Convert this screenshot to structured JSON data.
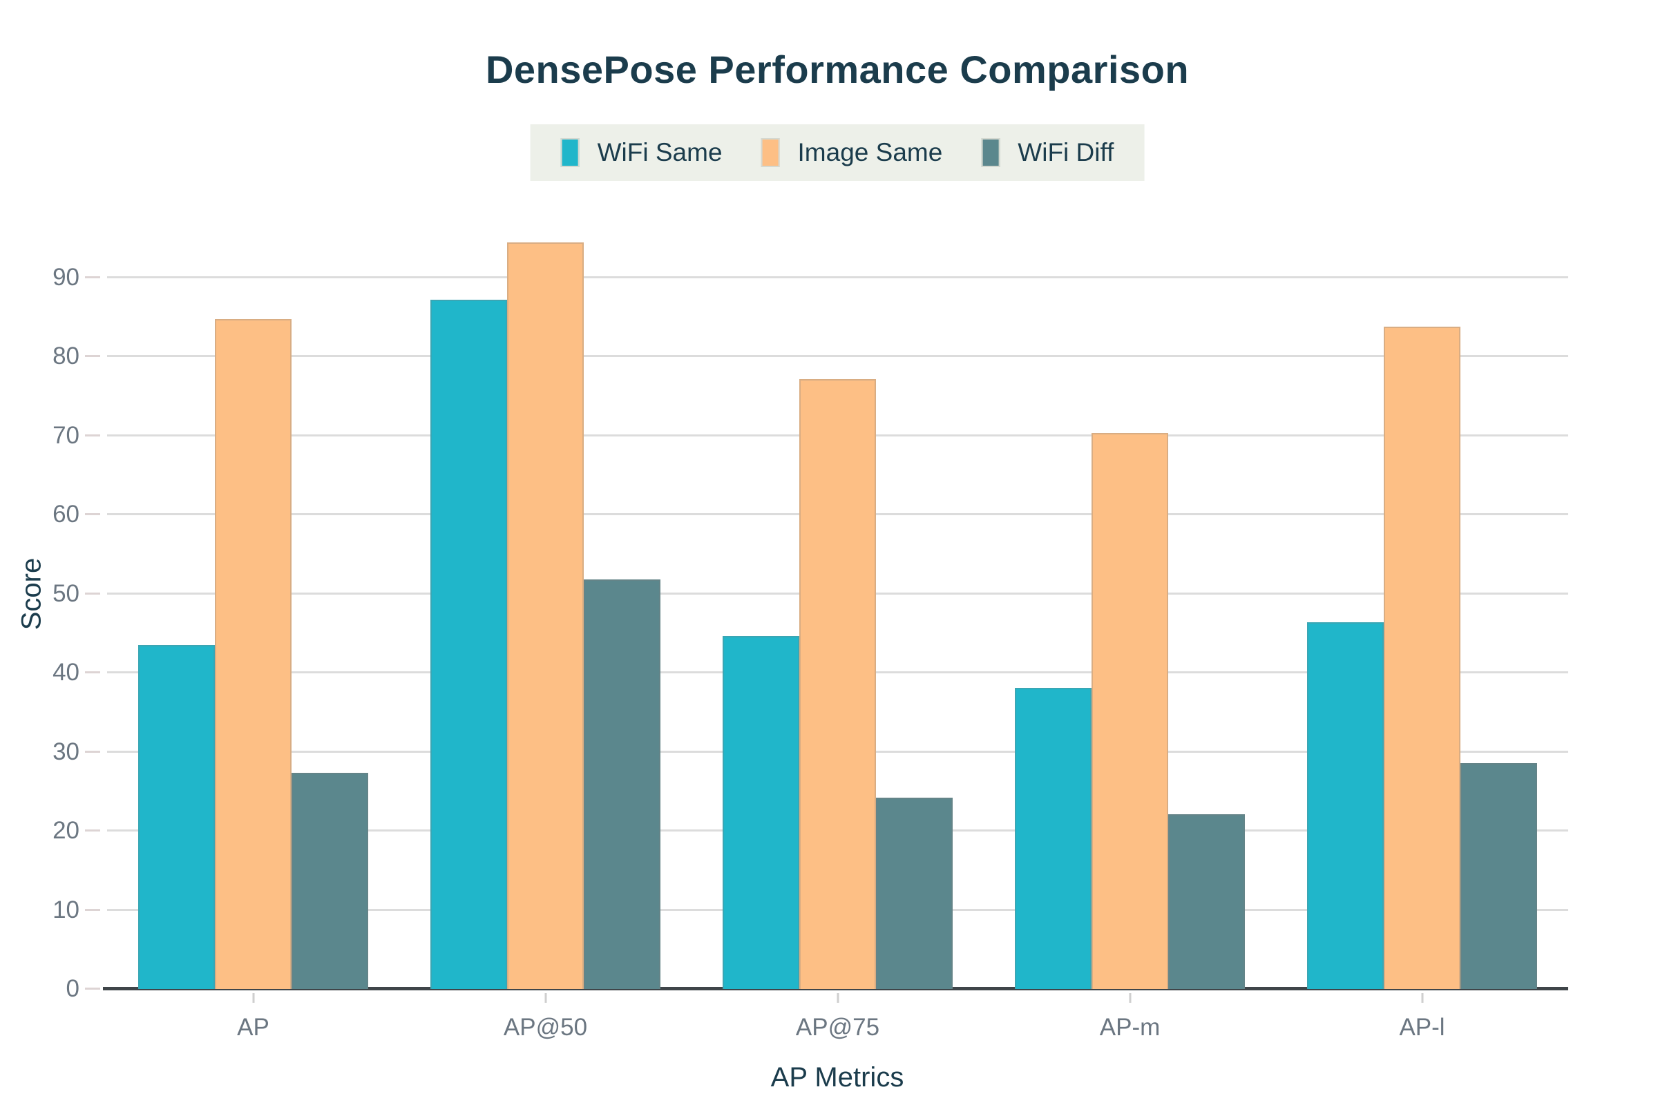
{
  "chart_data": {
    "type": "bar",
    "title": "DensePose Performance Comparison",
    "xlabel": "AP Metrics",
    "ylabel": "Score",
    "categories": [
      "AP",
      "AP@50",
      "AP@75",
      "AP-m",
      "AP-l"
    ],
    "series": [
      {
        "name": "WiFi Same",
        "color": "#20b6ca",
        "values": [
          43.5,
          87.2,
          44.6,
          38.1,
          46.4
        ]
      },
      {
        "name": "Image Same",
        "color": "#fdbf85",
        "values": [
          84.7,
          94.4,
          77.1,
          70.3,
          83.8
        ]
      },
      {
        "name": "WiFi Diff",
        "color": "#5b878d",
        "values": [
          27.3,
          51.8,
          24.2,
          22.1,
          28.6
        ]
      }
    ],
    "ylim": [
      0,
      100
    ],
    "yticks": [
      0,
      10,
      20,
      30,
      40,
      50,
      60,
      70,
      80,
      90
    ],
    "grid": true,
    "legend_position": "top-center",
    "colors": {
      "legend_bg": "#edf0e9",
      "title_text": "#1b3c4c",
      "tick_text": "#6b7681",
      "gridline": "#dcdcdc",
      "axis_line": "#3f4549"
    }
  }
}
